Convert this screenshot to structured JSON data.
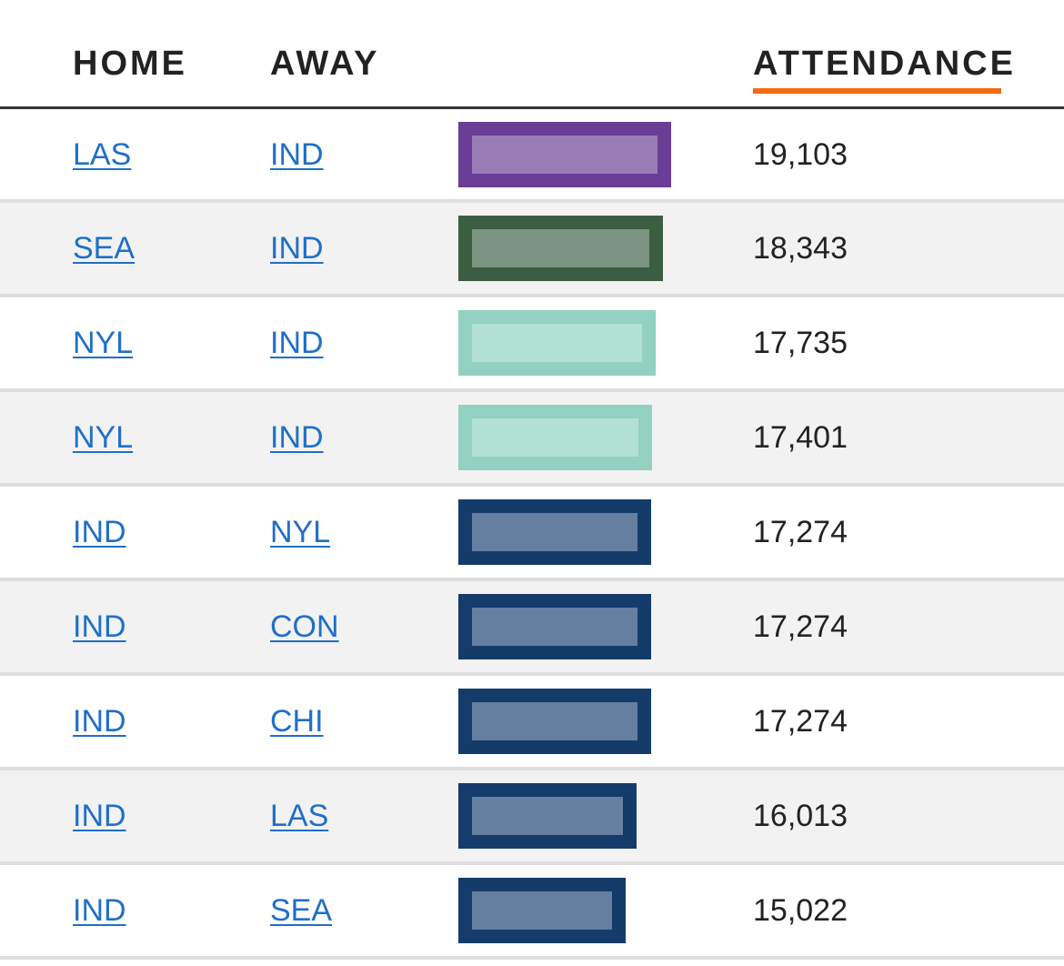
{
  "header": {
    "home_label": "HOME",
    "away_label": "AWAY",
    "attendance_label": "ATTENDANCE",
    "sort_color": "#f26b0f"
  },
  "bar_scale_max": 19103,
  "rows": [
    {
      "home": "LAS",
      "away": "IND",
      "attendance": "19,103",
      "value": 19103,
      "bar_color": "#6a3d96",
      "bar_fill": "#9a7db6"
    },
    {
      "home": "SEA",
      "away": "IND",
      "attendance": "18,343",
      "value": 18343,
      "bar_color": "#3b5e43",
      "bar_fill": "#7b9381"
    },
    {
      "home": "NYL",
      "away": "IND",
      "attendance": "17,735",
      "value": 17735,
      "bar_color": "#92d1c0",
      "bar_fill": "#b3e0d5"
    },
    {
      "home": "NYL",
      "away": "IND",
      "attendance": "17,401",
      "value": 17401,
      "bar_color": "#92d1c0",
      "bar_fill": "#b3e0d5"
    },
    {
      "home": "IND",
      "away": "NYL",
      "attendance": "17,274",
      "value": 17274,
      "bar_color": "#153b6b",
      "bar_fill": "#647f9f"
    },
    {
      "home": "IND",
      "away": "CON",
      "attendance": "17,274",
      "value": 17274,
      "bar_color": "#153b6b",
      "bar_fill": "#647f9f"
    },
    {
      "home": "IND",
      "away": "CHI",
      "attendance": "17,274",
      "value": 17274,
      "bar_color": "#153b6b",
      "bar_fill": "#647f9f"
    },
    {
      "home": "IND",
      "away": "LAS",
      "attendance": "16,013",
      "value": 16013,
      "bar_color": "#153b6b",
      "bar_fill": "#647f9f"
    },
    {
      "home": "IND",
      "away": "SEA",
      "attendance": "15,022",
      "value": 15022,
      "bar_color": "#153b6b",
      "bar_fill": "#647f9f"
    }
  ]
}
